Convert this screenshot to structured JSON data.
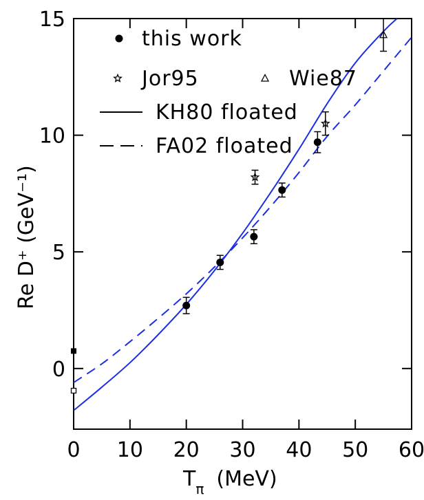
{
  "chart_data": {
    "type": "scatter",
    "xlabel": "T",
    "xlabel_sub": "π",
    "xlabel_unit": "(MeV)",
    "ylabel": "Re D⁺ (GeV⁻¹)",
    "xlim": [
      0,
      60
    ],
    "ylim": [
      -2.6,
      15
    ],
    "xticks": [
      0,
      10,
      20,
      30,
      40,
      50,
      60
    ],
    "yticks": [
      0,
      5,
      10,
      15
    ],
    "grid": false,
    "legend_position": "top-left",
    "colors": {
      "model": "#1a2ee6",
      "marker": "#000000"
    },
    "legend": [
      {
        "label": "this work",
        "symbol": "filled-circle"
      },
      {
        "label": "Jor95",
        "symbol": "star"
      },
      {
        "label": "Wie87",
        "symbol": "open-triangle"
      },
      {
        "label": "KH80 floated",
        "symbol": "solid-line"
      },
      {
        "label": "FA02 floated",
        "symbol": "dashed-line"
      }
    ],
    "series": [
      {
        "name": "this work",
        "marker": "filled-circle",
        "x": [
          20.0,
          26.0,
          32.0,
          37.0,
          43.3
        ],
        "y": [
          2.7,
          4.55,
          5.65,
          7.65,
          9.7
        ],
        "err": [
          0.35,
          0.3,
          0.3,
          0.3,
          0.45
        ]
      },
      {
        "name": "Jor95",
        "marker": "star",
        "x": [
          32.2,
          44.7
        ],
        "y": [
          8.2,
          10.5
        ],
        "err": [
          0.3,
          0.5
        ]
      },
      {
        "name": "Wie87",
        "marker": "open-triangle",
        "x": [
          55.0
        ],
        "y": [
          14.3
        ],
        "err": [
          0.7
        ]
      },
      {
        "name": "KH80 floated",
        "line": "solid",
        "x": [
          0,
          5,
          10,
          15,
          20,
          25,
          30,
          35,
          40,
          45,
          50,
          55,
          57.4
        ],
        "y": [
          -1.8,
          -0.8,
          0.25,
          1.45,
          2.75,
          4.2,
          5.8,
          7.55,
          9.4,
          11.35,
          13.1,
          14.45,
          15.0
        ]
      },
      {
        "name": "FA02 floated",
        "line": "dashed",
        "x": [
          0,
          5,
          10,
          15,
          20,
          25,
          30,
          35,
          40,
          45,
          50,
          55,
          60
        ],
        "y": [
          -0.6,
          0.2,
          1.15,
          2.15,
          3.2,
          4.35,
          5.6,
          6.95,
          8.4,
          9.95,
          11.3,
          12.75,
          14.2
        ]
      },
      {
        "name": "",
        "marker": "filled-square",
        "x": [
          0
        ],
        "y": [
          0.75
        ]
      },
      {
        "name": "",
        "marker": "open-square",
        "x": [
          0
        ],
        "y": [
          -0.95
        ]
      }
    ]
  }
}
